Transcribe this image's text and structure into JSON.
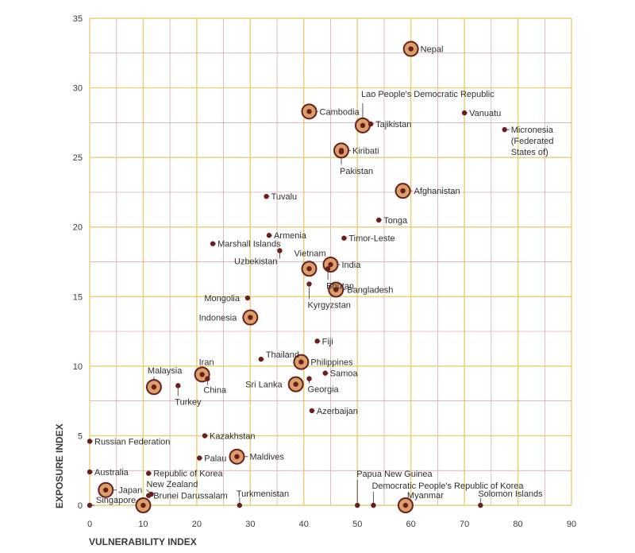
{
  "chart_data": {
    "type": "scatter",
    "xlabel": "VULNERABILITY INDEX",
    "ylabel": "EXPOSURE INDEX",
    "xlim": [
      0,
      90
    ],
    "ylim": [
      0,
      35
    ],
    "xticks": [
      "0",
      "10",
      "20",
      "30",
      "40",
      "50",
      "60",
      "70",
      "80",
      "90"
    ],
    "yticks": [
      "0",
      "5",
      "10",
      "15",
      "20",
      "25",
      "30",
      "35"
    ],
    "grid": true,
    "colors": {
      "point": "#6b1e1e",
      "highlight_fill": "#d9a06a",
      "grid_major": "#e3cf74",
      "grid_minor": "#c9a3a3",
      "text": "#2e2e2e"
    },
    "points": [
      {
        "name": "Nepal",
        "x": 60,
        "y": 32.8,
        "highlight": true
      },
      {
        "name": "Lao People's Democratic Republic",
        "x": 51,
        "y": 27.3,
        "highlight": true
      },
      {
        "name": "Cambodia",
        "x": 41,
        "y": 28.3,
        "highlight": true
      },
      {
        "name": "Tajikistan",
        "x": 52.5,
        "y": 27.4,
        "highlight": false
      },
      {
        "name": "Vanuatu",
        "x": 70,
        "y": 28.2,
        "highlight": false
      },
      {
        "name": "Micronesia (Federated States of)",
        "x": 77.5,
        "y": 27,
        "highlight": false
      },
      {
        "name": "Kiribati",
        "x": 47,
        "y": 25.5,
        "highlight": true
      },
      {
        "name": "Pakistan",
        "x": 47,
        "y": 25.4,
        "highlight": false
      },
      {
        "name": "Afghanistan",
        "x": 58.5,
        "y": 22.6,
        "highlight": true
      },
      {
        "name": "Tuvalu",
        "x": 33,
        "y": 22.2,
        "highlight": false
      },
      {
        "name": "Tonga",
        "x": 54,
        "y": 20.5,
        "highlight": false
      },
      {
        "name": "Armenia",
        "x": 33.5,
        "y": 19.4,
        "highlight": false
      },
      {
        "name": "Timor-Leste",
        "x": 47.5,
        "y": 19.2,
        "highlight": false
      },
      {
        "name": "Marshall Islands",
        "x": 23,
        "y": 18.8,
        "highlight": false
      },
      {
        "name": "Uzbekistan",
        "x": 35.5,
        "y": 18.3,
        "highlight": false
      },
      {
        "name": "Vietnam",
        "x": 41,
        "y": 17.0,
        "highlight": true
      },
      {
        "name": "India",
        "x": 45,
        "y": 17.3,
        "highlight": true
      },
      {
        "name": "Bhutan",
        "x": 44.5,
        "y": 17.0,
        "highlight": false
      },
      {
        "name": "Bangladesh",
        "x": 46,
        "y": 15.5,
        "highlight": true
      },
      {
        "name": "Kyrgyzstan",
        "x": 41,
        "y": 15.9,
        "highlight": false
      },
      {
        "name": "Mongolia",
        "x": 29.5,
        "y": 14.9,
        "highlight": false
      },
      {
        "name": "Indonesia",
        "x": 30,
        "y": 13.5,
        "highlight": true
      },
      {
        "name": "Fiji",
        "x": 42.5,
        "y": 11.8,
        "highlight": false
      },
      {
        "name": "Thailand",
        "x": 32,
        "y": 10.5,
        "highlight": false
      },
      {
        "name": "Philippines",
        "x": 39.5,
        "y": 10.3,
        "highlight": true
      },
      {
        "name": "Samoa",
        "x": 44,
        "y": 9.5,
        "highlight": false
      },
      {
        "name": "Georgia",
        "x": 41,
        "y": 9.1,
        "highlight": false
      },
      {
        "name": "Sri Lanka",
        "x": 38.5,
        "y": 8.7,
        "highlight": true
      },
      {
        "name": "Iran",
        "x": 21,
        "y": 9.4,
        "highlight": true
      },
      {
        "name": "China",
        "x": 22,
        "y": 9.1,
        "highlight": false
      },
      {
        "name": "Malaysia",
        "x": 12,
        "y": 8.5,
        "highlight": true
      },
      {
        "name": "Turkey",
        "x": 16.5,
        "y": 8.6,
        "highlight": false
      },
      {
        "name": "Azerbaijan",
        "x": 41.5,
        "y": 6.8,
        "highlight": false
      },
      {
        "name": "Kazakhstan",
        "x": 21.5,
        "y": 5.0,
        "highlight": false
      },
      {
        "name": "Russian Federation",
        "x": 0,
        "y": 4.6,
        "highlight": false
      },
      {
        "name": "Maldives",
        "x": 27.5,
        "y": 3.5,
        "highlight": true
      },
      {
        "name": "Palau",
        "x": 20.5,
        "y": 3.4,
        "highlight": false
      },
      {
        "name": "Australia",
        "x": 0,
        "y": 2.4,
        "highlight": false
      },
      {
        "name": "Republic of Korea",
        "x": 11,
        "y": 2.3,
        "highlight": false
      },
      {
        "name": "Japan",
        "x": 3,
        "y": 1.1,
        "highlight": true
      },
      {
        "name": "New Zealand",
        "x": 11.5,
        "y": 0.8,
        "highlight": false
      },
      {
        "name": "Brunei Darussalam",
        "x": 11,
        "y": 0.7,
        "highlight": false
      },
      {
        "name": "Singapore",
        "x": 0,
        "y": 0,
        "highlight": false
      },
      {
        "name": "",
        "x": 10,
        "y": 0,
        "highlight": true
      },
      {
        "name": "Turkmenistan",
        "x": 28,
        "y": 0,
        "highlight": false
      },
      {
        "name": "Papua New Guinea",
        "x": 50,
        "y": 0,
        "highlight": false
      },
      {
        "name": "Democratic People's Republic of Korea",
        "x": 53,
        "y": 0,
        "highlight": false
      },
      {
        "name": "Myanmar",
        "x": 59,
        "y": 0,
        "highlight": true
      },
      {
        "name": "Solomon Islands",
        "x": 73,
        "y": 0,
        "highlight": false
      }
    ]
  }
}
